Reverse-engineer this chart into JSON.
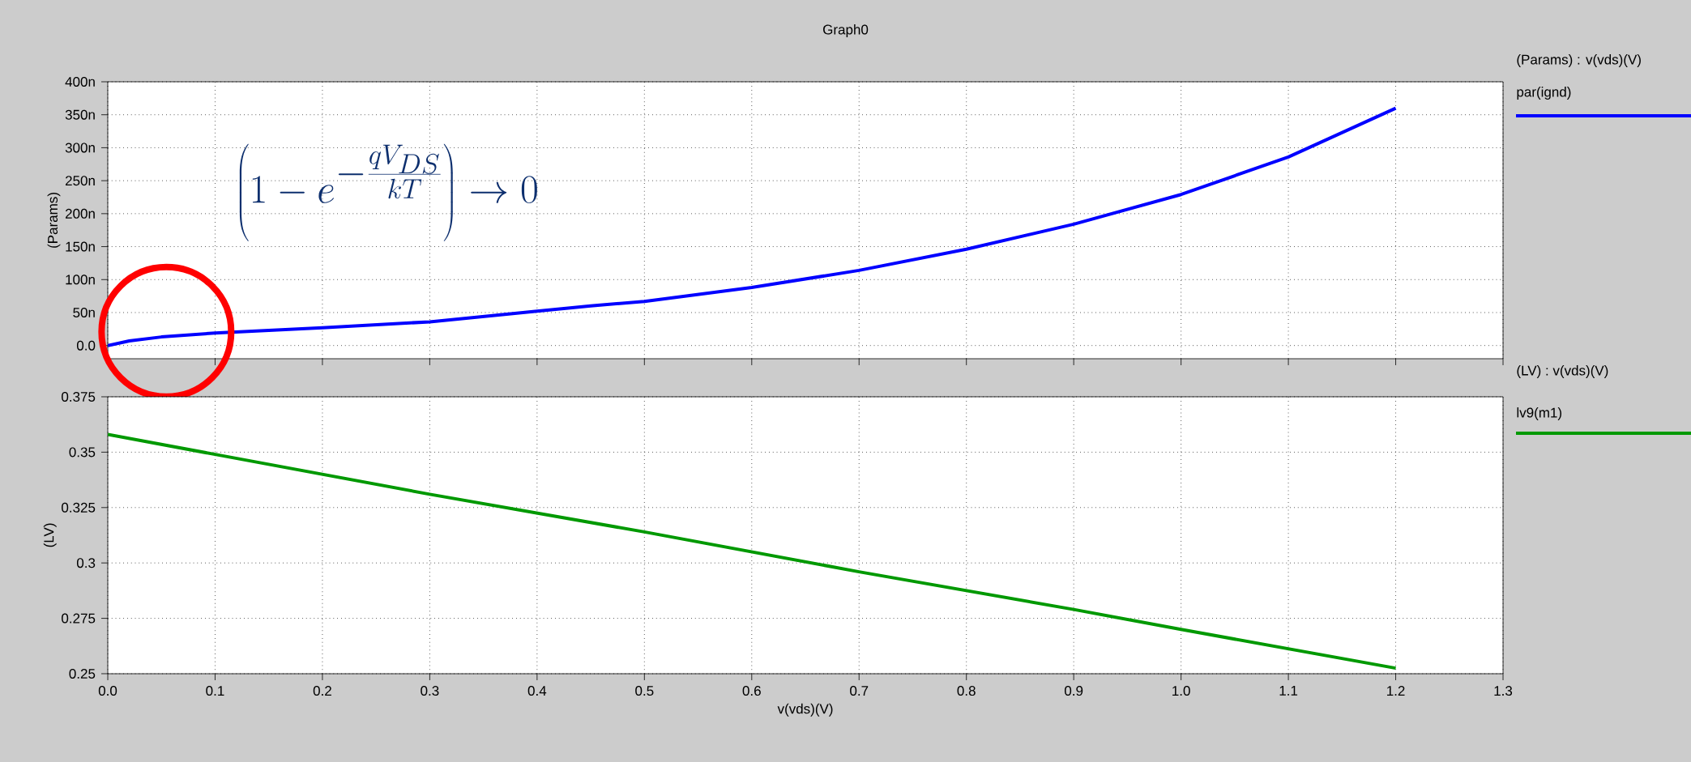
{
  "chart_data": [
    {
      "type": "line",
      "title": "Graph0",
      "ylabel": "(Params)",
      "legend_title": "(Params) : v(vds)(V)",
      "legend": "right",
      "grid": true,
      "tick_labels": "y",
      "annotations": [
        "\\left(1-e^{-\\frac{qV_{DS}}{kT}}\\right)\\to 0"
      ],
      "series": [
        {
          "name": "par(ignd)",
          "color": "#0000ff",
          "x": [
            0,
            0.02,
            0.05,
            0.1,
            0.2,
            0.3,
            0.4,
            0.45,
            0.5,
            0.6,
            0.7,
            0.8,
            0.9,
            1.0,
            1.1,
            1.2
          ],
          "values": [
            0,
            7,
            13,
            19,
            27,
            36,
            52,
            60,
            67,
            88,
            114,
            146,
            184,
            229,
            286,
            360
          ]
        }
      ],
      "xlim": [
        0,
        1.3
      ],
      "xticks": [
        0,
        0.1,
        0.2,
        0.3,
        0.4,
        0.5,
        0.6,
        0.7,
        0.8,
        0.9,
        1.0,
        1.1,
        1.2,
        1.3
      ],
      "ylim": [
        -20,
        400
      ],
      "yticks": [
        {
          "value": 0,
          "label": "0.0"
        },
        {
          "value": 50,
          "label": "50n"
        },
        {
          "value": 100,
          "label": "100n"
        },
        {
          "value": 150,
          "label": "150n"
        },
        {
          "value": 200,
          "label": "200n"
        },
        {
          "value": 250,
          "label": "250n"
        },
        {
          "value": 300,
          "label": "300n"
        },
        {
          "value": 350,
          "label": "350n"
        },
        {
          "value": 400,
          "label": "400n"
        }
      ]
    },
    {
      "type": "line",
      "xlabel": "v(vds)(V)",
      "ylabel": "(LV)",
      "legend_title": "(LV) : v(vds)(V)",
      "legend": "right",
      "grid": true,
      "series": [
        {
          "name": "lv9(m1)",
          "color": "#009900",
          "x": [
            0,
            0.1,
            0.3,
            0.5,
            0.7,
            0.9,
            1.0,
            1.2
          ],
          "values": [
            0.358,
            0.349,
            0.331,
            0.314,
            0.296,
            0.279,
            0.27,
            0.2525
          ]
        }
      ],
      "xlim": [
        0,
        1.3
      ],
      "xticks": [
        {
          "value": 0,
          "label": "0.0"
        },
        0.1,
        0.2,
        0.3,
        0.4,
        0.5,
        0.6,
        0.7,
        0.8,
        0.9,
        {
          "value": 1.0,
          "label": "1.0"
        },
        1.1,
        1.2,
        1.3
      ],
      "ylim": [
        0.25,
        0.375
      ],
      "yticks": [
        0.25,
        0.275,
        0.3,
        0.325,
        0.35,
        0.375
      ]
    }
  ]
}
